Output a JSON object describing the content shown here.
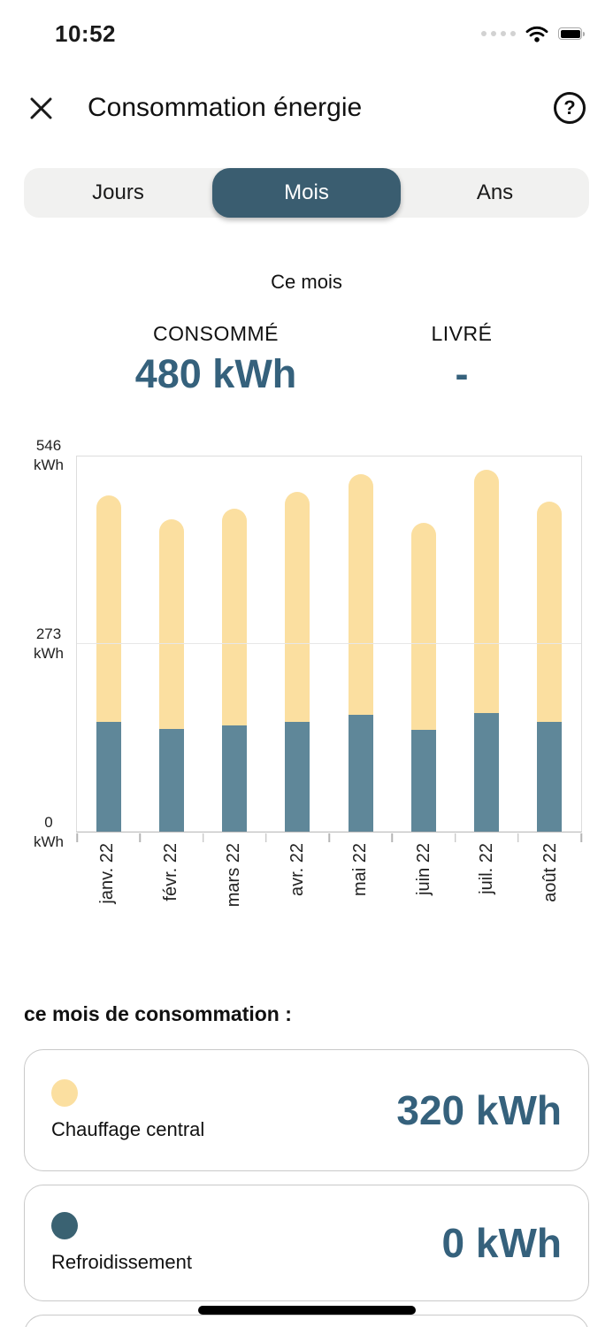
{
  "status_bar": {
    "time": "10:52"
  },
  "header": {
    "close_glyph": "✕",
    "title": "Consommation énergie",
    "help_glyph": "?"
  },
  "tabs": {
    "selected_index": 1,
    "items": [
      {
        "label": "Jours"
      },
      {
        "label": "Mois"
      },
      {
        "label": "Ans"
      }
    ]
  },
  "summary": {
    "period": "Ce mois",
    "consumed": {
      "label": "CONSOMMÉ",
      "value": "480 kWh"
    },
    "delivered": {
      "label": "LIVRÉ",
      "value": "-"
    }
  },
  "chart_data": {
    "type": "bar",
    "stacked": true,
    "categories": [
      "janv. 22",
      "févr. 22",
      "mars 22",
      "avr. 22",
      "mai 22",
      "juin 22",
      "juil. 22",
      "août 22"
    ],
    "series": [
      {
        "name": "bottom-segment-blue",
        "color": "#5f8799",
        "values": [
          160,
          150,
          155,
          160,
          170,
          148,
          172,
          160
        ]
      },
      {
        "name": "top-segment-yellow (Chauffage central)",
        "color": "#fbdfa0",
        "values": [
          330,
          305,
          315,
          335,
          350,
          302,
          355,
          320
        ]
      }
    ],
    "y_ticks": [
      {
        "value": 546,
        "unit": "kWh"
      },
      {
        "value": 273,
        "unit": "kWh"
      },
      {
        "value": 0,
        "unit": "kWh"
      }
    ],
    "ylim": [
      0,
      546
    ],
    "grid": true,
    "legend_position": "cards-below",
    "x_label_rotation": -90
  },
  "breakdown": {
    "heading": "ce mois de consommation :",
    "items": [
      {
        "label": "Chauffage central",
        "value": "320 kWh",
        "dot_color": "#fbdfa0"
      },
      {
        "label": "Refroidissement",
        "value": "0 kWh",
        "dot_color": "#3a6272"
      }
    ]
  },
  "colors": {
    "accent_text": "#35617c",
    "selected_tab_bg": "#3a5d70",
    "bar_blue": "#5f8799",
    "bar_yellow": "#fbdfa0"
  }
}
